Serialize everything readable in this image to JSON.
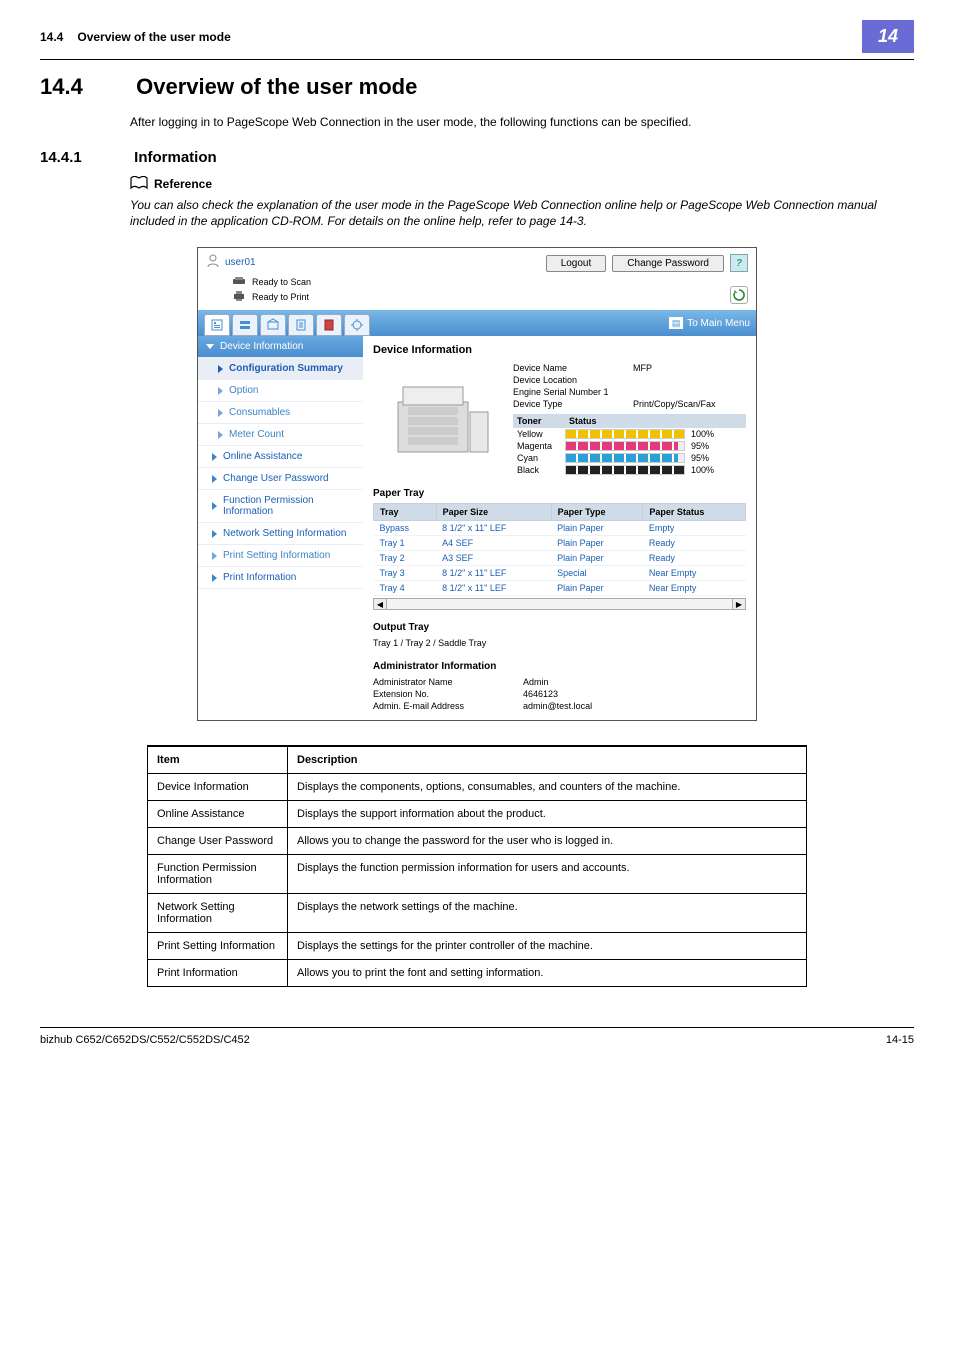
{
  "page": {
    "section_no": "14.4",
    "section_title": "Overview of the user mode",
    "chapter_badge": "14",
    "heading_no": "14.4",
    "heading_text": "Overview of the user mode",
    "intro": "After logging in to PageScope Web Connection in the user mode, the following functions can be specified.",
    "sub_no": "14.4.1",
    "sub_text": "Information",
    "ref_label": "Reference",
    "ref_body": "You can also check the explanation of the user mode in the PageScope Web Connection online help or PageScope Web Connection manual included in the application CD-ROM. For details on the online help, refer to page 14-3.",
    "footer_left": "bizhub C652/C652DS/C552/C552DS/C452",
    "footer_right": "14-15"
  },
  "shot": {
    "user_label": "user01",
    "logout": "Logout",
    "change_pw": "Change Password",
    "ready_scan": "Ready to Scan",
    "ready_print": "Ready to Print",
    "to_main": "To Main Menu",
    "sidebar": {
      "dev_info": "Device Information",
      "conf_summary": "Configuration Summary",
      "option": "Option",
      "consumables": "Consumables",
      "meter": "Meter Count",
      "online_assist": "Online Assistance",
      "change_user_pw": "Change User Password",
      "func_perm": "Function Permission Information",
      "net_setting": "Network Setting Information",
      "print_setting": "Print Setting Information",
      "print_info": "Print Information"
    },
    "content": {
      "dev_info_h": "Device Information",
      "dev_name_k": "Device Name",
      "dev_name_v": "MFP",
      "dev_loc_k": "Device Location",
      "dev_loc_v": "",
      "engine_k": "Engine Serial Number 1",
      "dev_type_k": "Device Type",
      "dev_type_v": "Print/Copy/Scan/Fax",
      "toner_h": "Toner",
      "status_h": "Status",
      "toners": [
        {
          "name": "Yellow",
          "pct": "100%",
          "color": "#f2c200",
          "fill": 100
        },
        {
          "name": "Magenta",
          "pct": "95%",
          "color": "#e23a7a",
          "fill": 95
        },
        {
          "name": "Cyan",
          "pct": "95%",
          "color": "#2aa0d8",
          "fill": 95
        },
        {
          "name": "Black",
          "pct": "100%",
          "color": "#222222",
          "fill": 100
        }
      ],
      "paper_h": "Paper Tray",
      "paper_cols": {
        "tray": "Tray",
        "size": "Paper Size",
        "type": "Paper Type",
        "status": "Paper Status"
      },
      "paper_rows": [
        {
          "tray": "Bypass",
          "size": "8 1/2\" x 11\" LEF",
          "type": "Plain Paper",
          "status": "Empty"
        },
        {
          "tray": "Tray 1",
          "size": "A4 SEF",
          "type": "Plain Paper",
          "status": "Ready"
        },
        {
          "tray": "Tray 2",
          "size": "A3 SEF",
          "type": "Plain Paper",
          "status": "Ready"
        },
        {
          "tray": "Tray 3",
          "size": "8 1/2\" x 11\" LEF",
          "type": "Special",
          "status": "Near Empty"
        },
        {
          "tray": "Tray 4",
          "size": "8 1/2\" x 11\" LEF",
          "type": "Plain Paper",
          "status": "Near Empty"
        }
      ],
      "output_h": "Output Tray",
      "output_v": "Tray 1 / Tray 2 / Saddle Tray",
      "admin_h": "Administrator Information",
      "admin_rows": [
        {
          "k": "Administrator Name",
          "v": "Admin"
        },
        {
          "k": "Extension No.",
          "v": "4646123"
        },
        {
          "k": "Admin. E-mail Address",
          "v": "admin@test.local"
        }
      ]
    }
  },
  "desc": {
    "head_item": "Item",
    "head_desc": "Description",
    "rows": [
      {
        "item": "Device Information",
        "desc": "Displays the components, options, consumables, and counters of the machine."
      },
      {
        "item": "Online Assistance",
        "desc": "Displays the support information about the product."
      },
      {
        "item": "Change User Password",
        "desc": "Allows you to change the password for the user who is logged in."
      },
      {
        "item": "Function Permission Information",
        "desc": "Displays the function permission information for users and accounts."
      },
      {
        "item": "Network Setting Information",
        "desc": "Displays the network settings of the machine."
      },
      {
        "item": "Print Setting Information",
        "desc": "Displays the settings for the printer controller of the machine."
      },
      {
        "item": "Print Information",
        "desc": "Allows you to print the font and setting information."
      }
    ]
  },
  "colors": {
    "tabbar": "#4a8ecf",
    "sidebar_head": "#4a8ecf",
    "link": "#1a5fb4"
  }
}
